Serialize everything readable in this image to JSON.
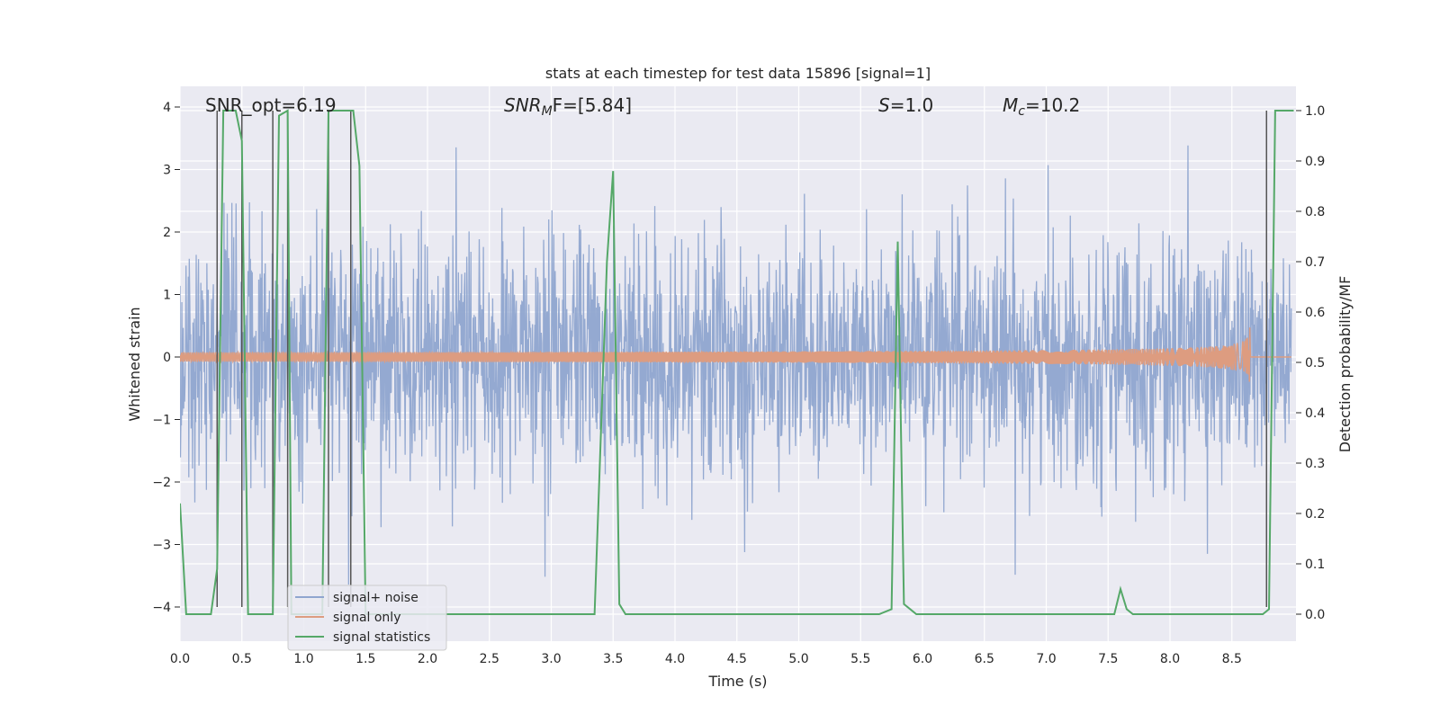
{
  "chart_data": {
    "type": "line",
    "title": "stats at each timestep for test data 15896 [signal=1]",
    "xlabel": "Time (s)",
    "ylabel_left": "Whitened strain",
    "ylabel_right": "Detection probability/MF",
    "xlim": [
      0.0,
      9.02
    ],
    "ylim_left": [
      -4.4,
      4.25
    ],
    "ylim_right": [
      -0.047,
      1.0195
    ],
    "xticks": [
      "0.0",
      "0.5",
      "1.0",
      "1.5",
      "2.0",
      "2.5",
      "3.0",
      "3.5",
      "4.0",
      "4.5",
      "5.0",
      "5.5",
      "6.0",
      "6.5",
      "7.0",
      "7.5",
      "8.0",
      "8.5"
    ],
    "yticks_left": [
      "4",
      "3",
      "2",
      "1",
      "0",
      "−1",
      "−2",
      "−3",
      "−4"
    ],
    "yticks_right": [
      "1.0",
      "0.9",
      "0.8",
      "0.7",
      "0.6",
      "0.5",
      "0.4",
      "0.3",
      "0.2",
      "0.1",
      "0.0"
    ],
    "grid": true,
    "legend_position": "lower-left",
    "annotations": {
      "snr_opt": "SNR_opt=6.19",
      "snr_mf": "SNR",
      "snr_mf_sub": "M",
      "snr_mf_rest": "F=[5.84]",
      "s_prefix": "S",
      "s_value": "=1.0",
      "mc_prefix": "M",
      "mc_sub": "c",
      "mc_value": "=10.2"
    },
    "series": [
      {
        "name": "signal+ noise",
        "color": "#8fa5cf",
        "axis": "left",
        "description_values": {
          "envelope_abs_max": 3.5,
          "typical_abs": 1.6,
          "sample_rate_hint": 400
        }
      },
      {
        "name": "signal only",
        "color": "#dd9c80",
        "axis": "left",
        "chirp": {
          "start_time": 4.5,
          "merger_time": 8.65,
          "peak_amplitude": 1.1
        }
      },
      {
        "name": "signal statistics",
        "color": "#55a868",
        "axis": "right",
        "x": [
          0.0,
          0.05,
          0.1,
          0.25,
          0.3,
          0.35,
          0.45,
          0.5,
          0.55,
          0.7,
          0.75,
          0.8,
          0.87,
          0.9,
          0.95,
          1.05,
          1.15,
          1.2,
          1.25,
          1.3,
          1.4,
          1.45,
          1.5,
          1.55,
          1.6,
          3.25,
          3.35,
          3.45,
          3.5,
          3.55,
          3.6,
          5.65,
          5.75,
          5.8,
          5.85,
          5.95,
          6.0,
          7.55,
          7.6,
          7.65,
          7.7,
          7.75,
          8.75,
          8.8,
          8.85,
          8.9,
          8.95,
          9.0
        ],
        "y": [
          0.22,
          0.0,
          0.0,
          0.0,
          0.09,
          1.0,
          1.0,
          0.94,
          0.0,
          0.0,
          0.0,
          0.99,
          1.0,
          0.0,
          0.0,
          0.0,
          0.0,
          1.0,
          1.0,
          1.0,
          1.0,
          0.89,
          0.0,
          0.0,
          0.0,
          0.0,
          0.0,
          0.7,
          0.88,
          0.02,
          0.0,
          0.0,
          0.01,
          0.74,
          0.02,
          0.0,
          0.0,
          0.0,
          0.05,
          0.01,
          0.0,
          0.0,
          0.0,
          0.01,
          1.0,
          1.0,
          1.0,
          1.0
        ]
      }
    ],
    "vertical_markers_x": [
      0.3,
      0.5,
      0.75,
      0.87,
      1.2,
      1.38,
      8.78
    ]
  }
}
